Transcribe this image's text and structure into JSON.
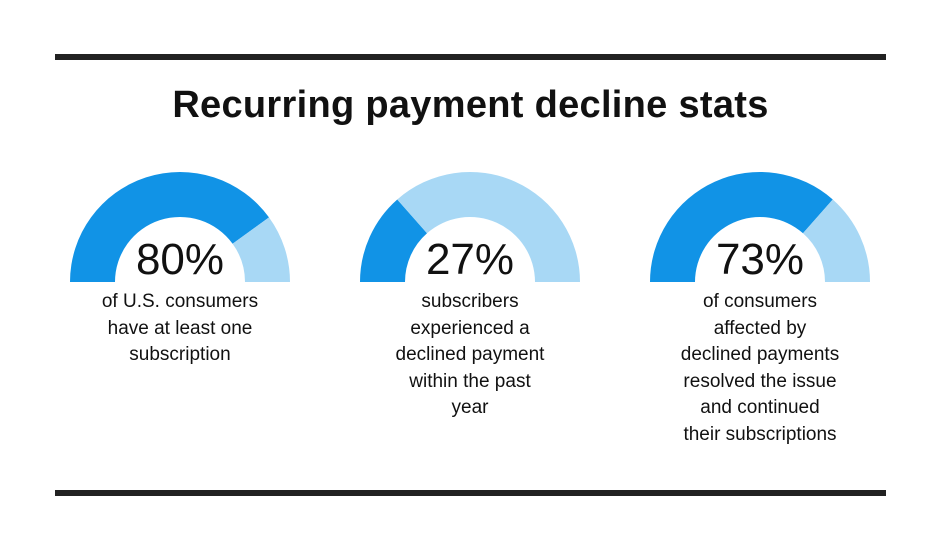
{
  "title": "Recurring payment decline stats",
  "colors": {
    "filled": "#1193e6",
    "remaining": "#a8d8f5",
    "rule": "#222222"
  },
  "chart_data": {
    "type": "gauge",
    "range": [
      0,
      100
    ],
    "unit": "%",
    "gauges": [
      {
        "value": 80,
        "label": "80%",
        "description": [
          "of U.S. consumers",
          "have at least one",
          "subscription"
        ]
      },
      {
        "value": 27,
        "label": "27%",
        "description": [
          "subscribers",
          "experienced a",
          "declined payment",
          "within the past",
          "year"
        ]
      },
      {
        "value": 73,
        "label": "73%",
        "description": [
          "of consumers",
          "affected by",
          "declined payments",
          "resolved the issue",
          "and continued",
          "their subscriptions"
        ]
      }
    ]
  }
}
